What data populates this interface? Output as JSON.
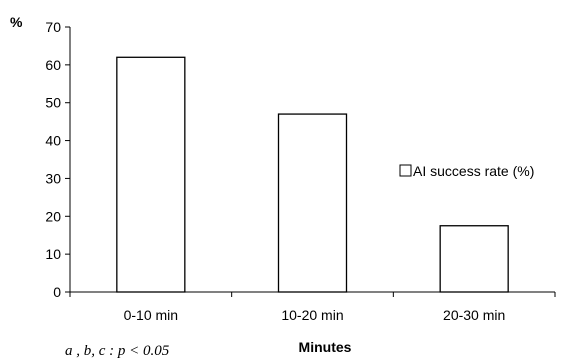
{
  "chart_data": {
    "type": "bar",
    "categories": [
      "0-10 min",
      "10-20 min",
      "20-30 min"
    ],
    "series": [
      {
        "name": "AI success rate (%)",
        "values": [
          62,
          47,
          17.5
        ]
      }
    ],
    "xlabel": "Minutes",
    "ylabel": "%",
    "ylim": [
      0,
      70
    ],
    "yticks": [
      0,
      10,
      20,
      30,
      40,
      50,
      60,
      70
    ],
    "grid": false,
    "legend_position": "right",
    "bar_fill": "#ffffff",
    "bar_stroke": "#000000",
    "footnote": "a , b, c : p < 0.05"
  }
}
